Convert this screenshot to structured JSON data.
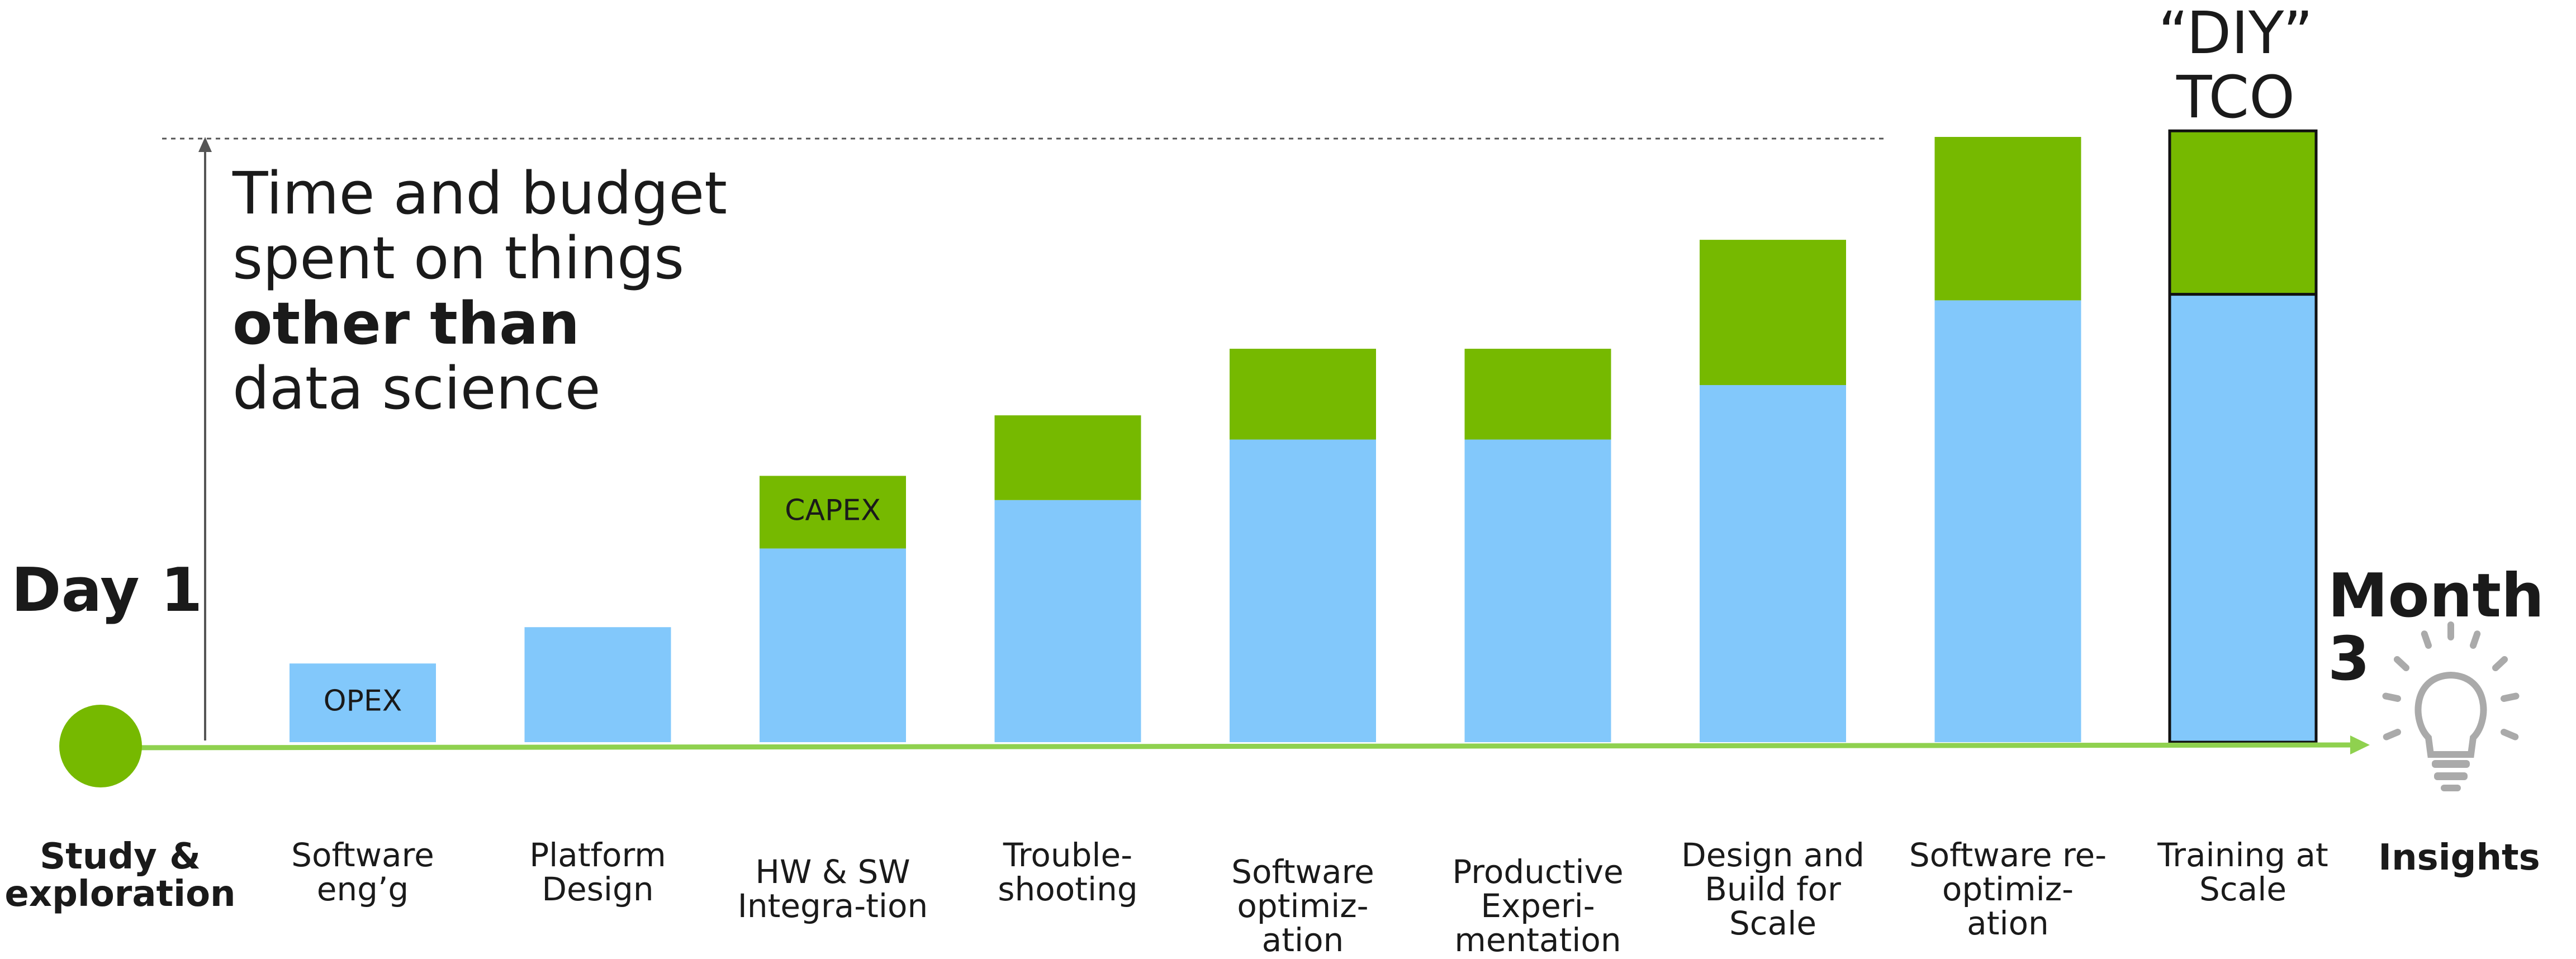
{
  "headline": {
    "line1": "Time and budget",
    "line2": "spent on things",
    "line3": "other than",
    "line4": "data science"
  },
  "timeline": {
    "start_label": "Day 1",
    "end_label": "Month 3",
    "start_caption": "Study &\nexploration",
    "end_caption": "Insights",
    "start_icon": "circle-dot-icon",
    "end_icon": "lightbulb-icon"
  },
  "colors": {
    "opex": "#82c8fb",
    "capex": "#76b900",
    "timeline": "#8fd14f",
    "start_dot": "#76b900",
    "text": "#1a1a1a"
  },
  "chart_data": {
    "type": "bar",
    "stacked": true,
    "categories": [
      "Software\neng’g",
      "Platform Design",
      "HW & SW\nIntegra-tion",
      "Trouble-shooting",
      "Software\noptimiz-ation",
      "Productive\nExperi-mentation",
      "Design and\nBuild for\nScale",
      "Software re-\noptimiz-ation",
      "Training at\nScale"
    ],
    "series": [
      {
        "key": "opex",
        "values": [
          0.13,
          0.19,
          0.32,
          0.4,
          0.5,
          0.5,
          0.59,
          0.73,
          0.74
        ]
      },
      {
        "key": "capex",
        "values": [
          0,
          0,
          0.12,
          0.14,
          0.15,
          0.15,
          0.24,
          0.27,
          0.27
        ]
      }
    ],
    "data_labels": {
      "opex_label": "OPEX",
      "capex_label": "CAPEX"
    },
    "highlight": {
      "title_line1": "“DIY”",
      "title_line2": "TCO"
    },
    "ylim": [
      0,
      1
    ],
    "legend": "none",
    "grid": false
  }
}
